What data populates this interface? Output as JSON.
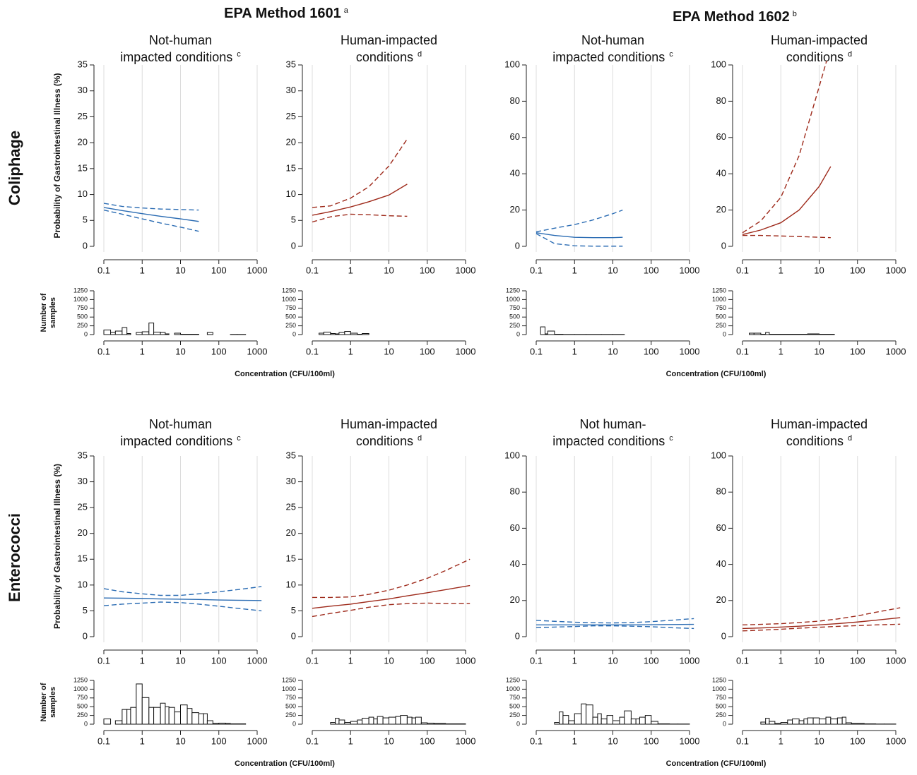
{
  "titles": [
    {
      "text": "EPA Method 1601",
      "note": "a"
    },
    {
      "text": "EPA Method 1602",
      "note": "b"
    }
  ],
  "row_labels": [
    "Coliphage",
    "Enterococci"
  ],
  "chart_data": [
    {
      "type": "line",
      "title_lines": [
        "Not-human",
        "impacted conditions"
      ],
      "title_note": "c",
      "ylabel": "Probability of Gastrointestinal Illness (%)",
      "log_x": true,
      "grid": true,
      "x": [
        0.1,
        0.3,
        1,
        3,
        10,
        30
      ],
      "series": [
        {
          "color": "#2b6cb3",
          "dash": false,
          "values": [
            7.5,
            6.9,
            6.3,
            5.8,
            5.3,
            4.8
          ]
        },
        {
          "color": "#2b6cb3",
          "dash": true,
          "values": [
            8.3,
            7.7,
            7.4,
            7.2,
            7.1,
            7.0
          ]
        },
        {
          "color": "#2b6cb3",
          "dash": true,
          "values": [
            7.0,
            6.2,
            5.3,
            4.5,
            3.7,
            2.9
          ]
        }
      ],
      "xlim": [
        0.1,
        1000
      ],
      "xticks": [
        0.1,
        1,
        10,
        100,
        1000
      ],
      "ylim": [
        0,
        35
      ],
      "yticks": [
        0,
        5,
        10,
        15,
        20,
        25,
        30,
        35
      ]
    },
    {
      "type": "histogram",
      "ylabel_lines": [
        "Number of",
        "samples"
      ],
      "xlabel": "Concentration (CFU/100ml)",
      "log_x": true,
      "bins": [
        0.1,
        0.15,
        0.2,
        0.3,
        0.4,
        0.5,
        0.7,
        1,
        1.5,
        2,
        3,
        4,
        5,
        7,
        10,
        15,
        20,
        30,
        40,
        50,
        70,
        100,
        150,
        200,
        300,
        500,
        1000
      ],
      "counts": [
        130,
        60,
        100,
        200,
        30,
        0,
        60,
        80,
        330,
        70,
        60,
        20,
        0,
        40,
        10,
        10,
        10,
        0,
        0,
        60,
        0,
        0,
        0,
        5,
        5,
        0
      ],
      "xlim": [
        0.1,
        1000
      ],
      "xticks": [
        0.1,
        1,
        10,
        100,
        1000
      ],
      "ylim": [
        0,
        1250
      ],
      "yticks": [
        0,
        250,
        500,
        750,
        1000,
        1250
      ]
    },
    {
      "type": "line",
      "title_lines": [
        "Human-impacted",
        "conditions"
      ],
      "title_note": "d",
      "log_x": true,
      "grid": true,
      "x": [
        0.1,
        0.3,
        1,
        3,
        10,
        30
      ],
      "series": [
        {
          "color": "#9e2a1b",
          "dash": false,
          "values": [
            6.0,
            6.7,
            7.6,
            8.6,
            9.9,
            12.0
          ]
        },
        {
          "color": "#9e2a1b",
          "dash": true,
          "values": [
            7.5,
            7.8,
            9.3,
            11.5,
            15.5,
            20.7
          ]
        },
        {
          "color": "#9e2a1b",
          "dash": true,
          "values": [
            4.7,
            5.7,
            6.2,
            6.1,
            5.9,
            5.8
          ]
        }
      ],
      "xlim": [
        0.1,
        1000
      ],
      "xticks": [
        0.1,
        1,
        10,
        100,
        1000
      ],
      "ylim": [
        0,
        35
      ],
      "yticks": [
        0,
        5,
        10,
        15,
        20,
        25,
        30,
        35
      ]
    },
    {
      "type": "histogram",
      "log_x": true,
      "bins": [
        0.15,
        0.2,
        0.3,
        0.4,
        0.5,
        0.7,
        1,
        1.5,
        2,
        3
      ],
      "counts": [
        40,
        70,
        30,
        20,
        60,
        90,
        40,
        10,
        30
      ],
      "xlim": [
        0.1,
        1000
      ],
      "xticks": [
        0.1,
        1,
        10,
        100,
        1000
      ],
      "ylim": [
        0,
        1250
      ],
      "yticks": [
        0,
        250,
        500,
        750,
        1000,
        1250
      ]
    },
    {
      "type": "line",
      "title_lines": [
        "Not-human",
        "impacted conditions"
      ],
      "title_note": "c",
      "log_x": true,
      "grid": true,
      "x": [
        0.1,
        0.3,
        1,
        3,
        10,
        18
      ],
      "series": [
        {
          "color": "#2b6cb3",
          "dash": false,
          "values": [
            7.5,
            6,
            5,
            4.8,
            4.8,
            5
          ]
        },
        {
          "color": "#2b6cb3",
          "dash": true,
          "values": [
            8,
            10,
            12,
            14.5,
            18,
            20
          ]
        },
        {
          "color": "#2b6cb3",
          "dash": true,
          "values": [
            7,
            1.5,
            0.3,
            0.1,
            0.1,
            0.1
          ]
        }
      ],
      "xlim": [
        0.1,
        1000
      ],
      "xticks": [
        0.1,
        1,
        10,
        100,
        1000
      ],
      "ylim": [
        0,
        100
      ],
      "yticks": [
        0,
        20,
        40,
        60,
        80,
        100
      ]
    },
    {
      "type": "histogram",
      "xlabel": "Concentration (CFU/100ml)",
      "log_x": true,
      "bins": [
        0.13,
        0.17,
        0.2,
        0.3,
        0.5,
        1,
        2,
        5,
        10,
        20
      ],
      "counts": [
        220,
        20,
        100,
        10,
        5,
        5,
        5,
        5,
        5
      ],
      "xlim": [
        0.1,
        1000
      ],
      "xticks": [
        0.1,
        1,
        10,
        100,
        1000
      ],
      "ylim": [
        0,
        1250
      ],
      "yticks": [
        0,
        250,
        500,
        750,
        1000,
        1250
      ]
    },
    {
      "type": "line",
      "title_lines": [
        "Human-impacted",
        "conditions"
      ],
      "title_note": "d",
      "log_x": true,
      "grid": true,
      "x": [
        0.1,
        0.3,
        1,
        3,
        10,
        20
      ],
      "series": [
        {
          "color": "#9e2a1b",
          "dash": false,
          "values": [
            6.5,
            9,
            13,
            20,
            33,
            44
          ]
        },
        {
          "color": "#9e2a1b",
          "dash": true,
          "values": [
            7.5,
            14,
            27,
            50,
            88,
            110
          ]
        },
        {
          "color": "#9e2a1b",
          "dash": true,
          "values": [
            6,
            6,
            5.7,
            5.4,
            5,
            4.8
          ]
        }
      ],
      "xlim": [
        0.1,
        1000
      ],
      "xticks": [
        0.1,
        1,
        10,
        100,
        1000
      ],
      "ylim": [
        0,
        100
      ],
      "yticks": [
        0,
        20,
        40,
        60,
        80,
        100
      ]
    },
    {
      "type": "histogram",
      "log_x": true,
      "bins": [
        0.15,
        0.2,
        0.3,
        0.4,
        0.5,
        1,
        2,
        5,
        10,
        25
      ],
      "counts": [
        40,
        40,
        10,
        60,
        10,
        10,
        10,
        20,
        10
      ],
      "xlim": [
        0.1,
        1000
      ],
      "xticks": [
        0.1,
        1,
        10,
        100,
        1000
      ],
      "ylim": [
        0,
        1250
      ],
      "yticks": [
        0,
        250,
        500,
        750,
        1000,
        1250
      ]
    },
    {
      "type": "line",
      "title_lines": [
        "Not-human",
        "impacted conditions"
      ],
      "title_note": "c",
      "ylabel": "Probability of Gastrointestinal Illness (%)",
      "log_x": true,
      "grid": true,
      "x": [
        0.1,
        0.3,
        1,
        3,
        10,
        30,
        100,
        300,
        1300
      ],
      "series": [
        {
          "color": "#2b6cb3",
          "dash": false,
          "values": [
            7.5,
            7.45,
            7.4,
            7.3,
            7.25,
            7.2,
            7.1,
            7.05,
            7.0
          ]
        },
        {
          "color": "#2b6cb3",
          "dash": true,
          "values": [
            9.3,
            8.7,
            8.3,
            8.0,
            8.0,
            8.3,
            8.7,
            9.1,
            9.7
          ]
        },
        {
          "color": "#2b6cb3",
          "dash": true,
          "values": [
            6.0,
            6.3,
            6.5,
            6.7,
            6.6,
            6.3,
            5.9,
            5.5,
            5.0
          ]
        }
      ],
      "xlim": [
        0.1,
        1000
      ],
      "xticks": [
        0.1,
        1,
        10,
        100,
        1000
      ],
      "ylim": [
        0,
        35
      ],
      "yticks": [
        0,
        5,
        10,
        15,
        20,
        25,
        30,
        35
      ]
    },
    {
      "type": "histogram",
      "ylabel_lines": [
        "Number of",
        "samples"
      ],
      "xlabel": "Concentration (CFU/100ml)",
      "log_x": true,
      "bins": [
        0.1,
        0.15,
        0.2,
        0.3,
        0.4,
        0.5,
        0.7,
        1,
        1.5,
        2,
        3,
        4,
        5,
        7,
        10,
        15,
        20,
        30,
        40,
        50,
        70,
        100,
        150,
        200,
        300,
        500,
        1000
      ],
      "counts": [
        150,
        0,
        100,
        420,
        420,
        480,
        1150,
        760,
        480,
        480,
        600,
        500,
        480,
        350,
        550,
        450,
        330,
        300,
        300,
        100,
        20,
        30,
        20,
        10,
        10,
        0
      ],
      "xlim": [
        0.1,
        1000
      ],
      "xticks": [
        0.1,
        1,
        10,
        100,
        1000
      ],
      "ylim": [
        0,
        1250
      ],
      "yticks": [
        0,
        250,
        500,
        750,
        1000,
        1250
      ]
    },
    {
      "type": "line",
      "title_lines": [
        "Human-impacted",
        "conditions"
      ],
      "title_note": "d",
      "log_x": true,
      "grid": true,
      "x": [
        0.1,
        0.3,
        1,
        3,
        10,
        30,
        100,
        300,
        1300
      ],
      "series": [
        {
          "color": "#9e2a1b",
          "dash": false,
          "values": [
            5.5,
            5.9,
            6.3,
            6.8,
            7.3,
            7.9,
            8.5,
            9.1,
            9.9
          ]
        },
        {
          "color": "#9e2a1b",
          "dash": true,
          "values": [
            7.6,
            7.6,
            7.7,
            8.2,
            9.0,
            10.0,
            11.3,
            12.8,
            15.0
          ]
        },
        {
          "color": "#9e2a1b",
          "dash": true,
          "values": [
            3.9,
            4.5,
            5.1,
            5.7,
            6.2,
            6.4,
            6.5,
            6.4,
            6.4
          ]
        }
      ],
      "xlim": [
        0.1,
        1000
      ],
      "xticks": [
        0.1,
        1,
        10,
        100,
        1000
      ],
      "ylim": [
        0,
        35
      ],
      "yticks": [
        0,
        5,
        10,
        15,
        20,
        25,
        30,
        35
      ]
    },
    {
      "type": "histogram",
      "log_x": true,
      "bins": [
        0.3,
        0.4,
        0.5,
        0.7,
        1,
        1.5,
        2,
        3,
        4,
        5,
        7,
        10,
        15,
        20,
        30,
        40,
        50,
        70,
        100,
        150,
        200,
        300,
        500,
        1000
      ],
      "counts": [
        50,
        170,
        120,
        50,
        80,
        120,
        170,
        200,
        150,
        220,
        180,
        200,
        220,
        250,
        200,
        180,
        200,
        40,
        30,
        20,
        20,
        10,
        10
      ],
      "xlim": [
        0.1,
        1000
      ],
      "xticks": [
        0.1,
        1,
        10,
        100,
        1000
      ],
      "ylim": [
        0,
        1250
      ],
      "yticks": [
        0,
        250,
        500,
        750,
        1000,
        1250
      ]
    },
    {
      "type": "line",
      "title_lines": [
        "Not human-",
        "impacted conditions"
      ],
      "title_note": "c",
      "log_x": true,
      "grid": true,
      "x": [
        0.1,
        0.3,
        1,
        3,
        10,
        30,
        100,
        300,
        1300
      ],
      "series": [
        {
          "color": "#2b6cb3",
          "dash": false,
          "values": [
            6.5,
            6.5,
            6.5,
            6.5,
            6.5,
            6.5,
            6.6,
            6.7,
            6.8
          ]
        },
        {
          "color": "#2b6cb3",
          "dash": true,
          "values": [
            9,
            8.5,
            8,
            7.7,
            7.6,
            7.8,
            8.3,
            9,
            10
          ]
        },
        {
          "color": "#2b6cb3",
          "dash": true,
          "values": [
            5,
            5.3,
            5.6,
            6,
            6,
            5.8,
            5.5,
            5.0,
            4.5
          ]
        }
      ],
      "xlim": [
        0.1,
        1000
      ],
      "xticks": [
        0.1,
        1,
        10,
        100,
        1000
      ],
      "ylim": [
        0,
        100
      ],
      "yticks": [
        0,
        20,
        40,
        60,
        80,
        100
      ]
    },
    {
      "type": "histogram",
      "xlabel": "Concentration (CFU/100ml)",
      "log_x": true,
      "bins": [
        0.3,
        0.4,
        0.5,
        0.7,
        1,
        1.5,
        2,
        3,
        4,
        5,
        7,
        10,
        15,
        20,
        30,
        40,
        50,
        70,
        100,
        150,
        200,
        300,
        500,
        1000
      ],
      "counts": [
        50,
        350,
        250,
        100,
        300,
        580,
        550,
        200,
        300,
        150,
        250,
        100,
        200,
        380,
        150,
        150,
        200,
        250,
        80,
        10,
        10,
        5,
        5
      ],
      "xlim": [
        0.1,
        1000
      ],
      "xticks": [
        0.1,
        1,
        10,
        100,
        1000
      ],
      "ylim": [
        0,
        1250
      ],
      "yticks": [
        0,
        250,
        500,
        750,
        1000,
        1250
      ]
    },
    {
      "type": "line",
      "title_lines": [
        "Human-impacted",
        "conditions"
      ],
      "title_note": "d",
      "log_x": true,
      "grid": true,
      "x": [
        0.1,
        0.3,
        1,
        3,
        10,
        30,
        100,
        300,
        1300
      ],
      "series": [
        {
          "color": "#9e2a1b",
          "dash": false,
          "values": [
            4.5,
            4.8,
            5.3,
            5.8,
            6.5,
            7.2,
            8.1,
            9.1,
            10.5
          ]
        },
        {
          "color": "#9e2a1b",
          "dash": true,
          "values": [
            6.5,
            6.8,
            7.2,
            7.8,
            8.6,
            9.8,
            11.5,
            13.5,
            16
          ]
        },
        {
          "color": "#9e2a1b",
          "dash": true,
          "values": [
            3.2,
            3.6,
            4.1,
            4.7,
            5.2,
            5.7,
            6.1,
            6.5,
            6.9
          ]
        }
      ],
      "xlim": [
        0.1,
        1000
      ],
      "xticks": [
        0.1,
        1,
        10,
        100,
        1000
      ],
      "ylim": [
        0,
        100
      ],
      "yticks": [
        0,
        20,
        40,
        60,
        80,
        100
      ]
    },
    {
      "type": "histogram",
      "log_x": true,
      "bins": [
        0.3,
        0.4,
        0.5,
        0.7,
        1,
        1.5,
        2,
        3,
        4,
        5,
        7,
        10,
        15,
        20,
        30,
        40,
        50,
        70,
        100,
        150,
        200,
        300,
        500,
        1000
      ],
      "counts": [
        60,
        170,
        80,
        20,
        50,
        120,
        150,
        100,
        150,
        180,
        180,
        150,
        200,
        150,
        180,
        200,
        40,
        20,
        20,
        10,
        10,
        5,
        5
      ],
      "xlim": [
        0.1,
        1000
      ],
      "xticks": [
        0.1,
        1,
        10,
        100,
        1000
      ],
      "ylim": [
        0,
        1250
      ],
      "yticks": [
        0,
        250,
        500,
        750,
        1000,
        1250
      ]
    }
  ]
}
